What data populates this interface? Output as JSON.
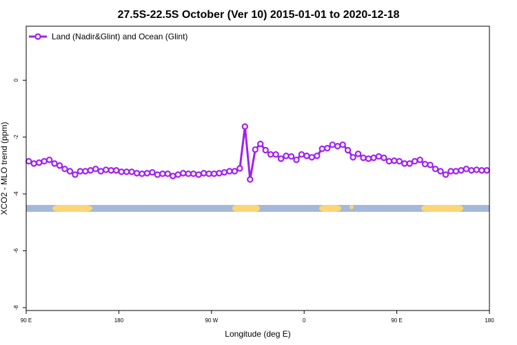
{
  "chart_data": {
    "type": "line",
    "title": "27.5S-22.5S October (Ver 10)   2015-01-01 to 2020-12-18",
    "xlabel": "Longitude (deg E)",
    "ylabel": "XCO2 - MLO trend (ppm)",
    "legend": "upper left",
    "xlim": [
      90,
      540
    ],
    "ylim": [
      -8.1,
      1.9
    ],
    "xticks": [
      {
        "value": 90,
        "label": "90 E"
      },
      180,
      {
        "value": 270,
        "label": "90 W"
      },
      {
        "value": 360,
        "label": "0"
      },
      {
        "value": 450,
        "label": "90 E"
      },
      {
        "value": 540,
        "label": "180"
      }
    ],
    "yticks": [
      -8,
      -6,
      -4,
      -2,
      0
    ],
    "x": [
      92.5,
      97.5,
      102.5,
      107.5,
      112.5,
      117.5,
      122.5,
      127.5,
      132.5,
      137.5,
      142.5,
      147.5,
      152.5,
      157.5,
      162.5,
      167.5,
      172.5,
      177.5,
      182.5,
      187.5,
      192.5,
      197.5,
      202.5,
      207.5,
      212.5,
      217.5,
      222.5,
      227.5,
      232.5,
      237.5,
      242.5,
      247.5,
      252.5,
      257.5,
      262.5,
      267.5,
      272.5,
      277.5,
      282.5,
      287.5,
      292.5,
      297.5,
      302.5,
      307.5,
      312.5,
      317.5,
      322.5,
      327.5,
      332.5,
      337.5,
      342.5,
      347.5,
      352.5,
      357.5,
      362.5,
      367.5,
      372.5,
      377.5,
      382.5,
      387.5,
      392.5,
      397.5,
      402.5,
      407.5,
      412.5,
      417.5,
      422.5,
      427.5,
      432.5,
      437.5,
      442.5,
      447.5,
      452.5,
      457.5,
      462.5,
      467.5,
      472.5,
      477.5,
      482.5,
      487.5,
      492.5,
      497.5,
      502.5,
      507.5,
      512.5,
      517.5,
      522.5,
      527.5,
      532.5,
      537.5
    ],
    "series": [
      {
        "name": "Land (Nadir&Glint) and Ocean (Glint)",
        "color": "#a020f0",
        "values": [
          -2.85,
          -2.93,
          -2.9,
          -2.85,
          -2.8,
          -2.93,
          -3.0,
          -3.12,
          -3.2,
          -3.32,
          -3.2,
          -3.2,
          -3.17,
          -3.12,
          -3.2,
          -3.15,
          -3.17,
          -3.17,
          -3.22,
          -3.22,
          -3.22,
          -3.27,
          -3.29,
          -3.27,
          -3.24,
          -3.32,
          -3.29,
          -3.29,
          -3.37,
          -3.32,
          -3.27,
          -3.29,
          -3.29,
          -3.32,
          -3.27,
          -3.29,
          -3.29,
          -3.27,
          -3.24,
          -3.2,
          -3.2,
          -3.1,
          -1.63,
          -3.49,
          -2.44,
          -2.24,
          -2.46,
          -2.61,
          -2.61,
          -2.76,
          -2.66,
          -2.68,
          -2.8,
          -2.61,
          -2.66,
          -2.71,
          -2.66,
          -2.41,
          -2.39,
          -2.27,
          -2.32,
          -2.27,
          -2.46,
          -2.71,
          -2.59,
          -2.73,
          -2.76,
          -2.73,
          -2.68,
          -2.73,
          -2.85,
          -2.83,
          -2.85,
          -2.93,
          -2.93,
          -2.85,
          -2.8,
          -2.95,
          -2.98,
          -3.12,
          -3.2,
          -3.32,
          -3.2,
          -3.2,
          -3.17,
          -3.12,
          -3.17,
          -3.15,
          -3.17,
          -3.17
        ]
      }
    ]
  }
}
